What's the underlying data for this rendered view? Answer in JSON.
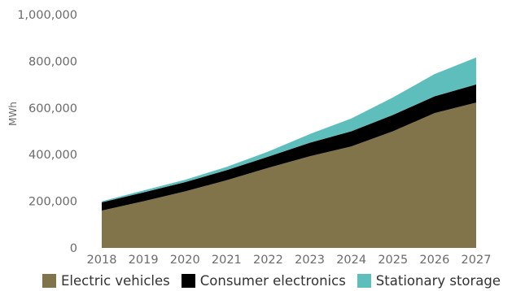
{
  "chart_data": {
    "type": "area",
    "stacked": true,
    "title": "",
    "xlabel": "",
    "ylabel": "MWh",
    "x": [
      "2018",
      "2019",
      "2020",
      "2021",
      "2022",
      "2023",
      "2024",
      "2025",
      "2026",
      "2027"
    ],
    "ylim": [
      0,
      1000000
    ],
    "yticks": [
      0,
      200000,
      400000,
      600000,
      800000,
      1000000
    ],
    "ytick_labels": [
      "0",
      "200,000",
      "400,000",
      "600,000",
      "800,000",
      "1,000,000"
    ],
    "grid": false,
    "legend_position": "bottom",
    "series": [
      {
        "name": "Electric vehicles",
        "color": "#81744a",
        "values": [
          160000,
          200000,
          242000,
          290000,
          343000,
          393000,
          435000,
          500000,
          578000,
          623000
        ]
      },
      {
        "name": "Consumer electronics",
        "color": "#000000",
        "values": [
          35000,
          38000,
          40000,
          43000,
          48000,
          58000,
          65000,
          70000,
          72000,
          78000
        ]
      },
      {
        "name": "Stationary storage",
        "color": "#5ebebb",
        "values": [
          5000,
          8000,
          10000,
          14000,
          22000,
          37000,
          55000,
          75000,
          95000,
          115000
        ]
      }
    ]
  }
}
